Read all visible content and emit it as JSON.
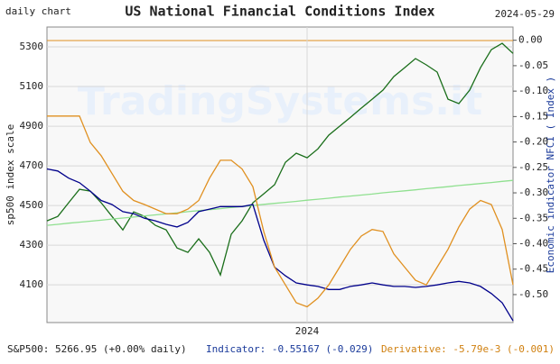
{
  "chart_data": {
    "type": "line",
    "title": "US National Financial Conditions Index",
    "subtitle": "daily chart",
    "date": "2024-05-29",
    "watermark": "TradingSystems.it",
    "ylabel": "sp500 index scale",
    "y2label": "Economic indicator NFCI ( Index )",
    "categories": [
      null,
      null,
      null,
      null,
      null,
      null,
      null,
      null,
      null,
      null,
      null,
      null,
      null,
      null,
      null,
      null,
      null,
      null,
      null,
      null,
      null,
      null,
      null,
      null,
      "2024",
      null,
      null,
      null,
      null,
      null,
      null,
      null,
      null,
      null,
      null,
      null,
      null,
      null,
      null,
      null,
      null,
      null,
      null,
      null
    ],
    "ylim": [
      3910,
      5400
    ],
    "yticks": [
      4100,
      4300,
      4500,
      4700,
      4900,
      5100,
      5300
    ],
    "y2lim": [
      -0.555,
      0.026
    ],
    "y2ticks": [
      {
        "value": 0,
        "label": "0.00"
      },
      {
        "value": -0.05,
        "label": "-0.05"
      },
      {
        "value": -0.1,
        "label": "-0.10"
      },
      {
        "value": -0.15,
        "label": "-0.15"
      },
      {
        "value": -0.2,
        "label": "-0.20"
      },
      {
        "value": -0.25,
        "label": "-0.25"
      },
      {
        "value": -0.3,
        "label": "-0.30"
      },
      {
        "value": -0.35,
        "label": "-0.35"
      },
      {
        "value": -0.4,
        "label": "-0.40"
      },
      {
        "value": -0.45,
        "label": "-0.45"
      },
      {
        "value": -0.5,
        "label": "-0.50"
      }
    ],
    "grid": true,
    "series": [
      {
        "color": "#1a6e1a",
        "values": [
          4423,
          4445,
          4514,
          4582,
          4573,
          4514,
          4445,
          4377,
          4468,
          4445,
          4400,
          4377,
          4286,
          4264,
          4332,
          4264,
          4150,
          4355,
          4423,
          4514,
          4559,
          4605,
          4718,
          4764,
          4741,
          4786,
          4855,
          4900,
          4945,
          4991,
          5036,
          5082,
          5150,
          5195,
          5241,
          5209,
          5173,
          5036,
          5014,
          5082,
          5195,
          5286,
          5318,
          5266.95
        ]
      },
      {
        "color": "#90e090",
        "values": [
          4400,
          4405,
          4411,
          4416,
          4421,
          4426,
          4432,
          4437,
          4442,
          4448,
          4453,
          4458,
          4463,
          4469,
          4474,
          4479,
          4484,
          4490,
          4495,
          4500,
          4506,
          4511,
          4516,
          4521,
          4527,
          4532,
          4537,
          4543,
          4548,
          4553,
          4558,
          4564,
          4569,
          4574,
          4579,
          4585,
          4590,
          4595,
          4601,
          4606,
          4611,
          4616,
          4622,
          4627
        ]
      },
      {
        "color": "#00008b",
        "axis": "y2",
        "values": [
          -0.253,
          -0.257,
          -0.271,
          -0.28,
          -0.297,
          -0.315,
          -0.323,
          -0.337,
          -0.341,
          -0.35,
          -0.355,
          -0.362,
          -0.367,
          -0.358,
          -0.337,
          -0.332,
          -0.327,
          -0.327,
          -0.327,
          -0.323,
          -0.393,
          -0.446,
          -0.463,
          -0.477,
          -0.481,
          -0.484,
          -0.49,
          -0.49,
          -0.484,
          -0.481,
          -0.477,
          -0.481,
          -0.484,
          -0.484,
          -0.486,
          -0.484,
          -0.481,
          -0.477,
          -0.474,
          -0.477,
          -0.484,
          -0.498,
          -0.516,
          -0.55167
        ]
      },
      {
        "color": "#e09020",
        "axis": "y2",
        "values": [
          -0.149,
          -0.149,
          -0.149,
          -0.149,
          -0.201,
          -0.227,
          -0.262,
          -0.297,
          -0.315,
          -0.323,
          -0.332,
          -0.341,
          -0.341,
          -0.332,
          -0.315,
          -0.271,
          -0.236,
          -0.236,
          -0.253,
          -0.288,
          -0.376,
          -0.446,
          -0.481,
          -0.516,
          -0.524,
          -0.507,
          -0.481,
          -0.446,
          -0.411,
          -0.385,
          -0.372,
          -0.376,
          -0.42,
          -0.446,
          -0.472,
          -0.481,
          -0.446,
          -0.411,
          -0.367,
          -0.332,
          -0.315,
          -0.323,
          -0.372,
          -0.481
        ]
      }
    ],
    "footer": [
      "S&P500: 5266.95 (+0.00% daily)",
      "Indicator: -0.55167 (-0.029)",
      "Derivative: -5.79e-3 (-0.001)"
    ]
  }
}
